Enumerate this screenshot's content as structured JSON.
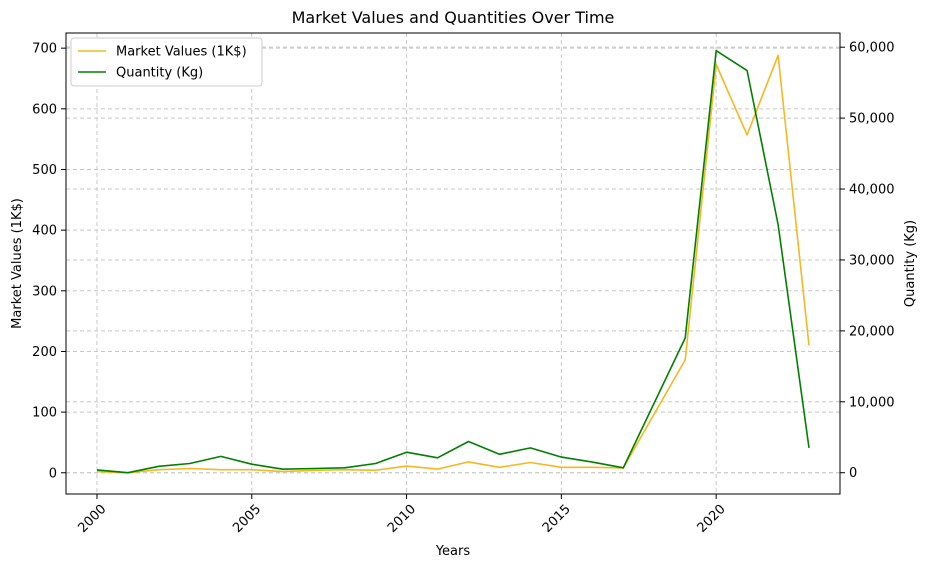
{
  "chart_data": {
    "type": "line",
    "title": "Market Values and Quantities Over Time",
    "xlabel": "Years",
    "ylabel_left": "Market Values (1K$)",
    "ylabel_right": "Quantity (Kg)",
    "xlim": [
      1999,
      2024
    ],
    "ylim_left": [
      -35,
      725
    ],
    "ylim_right": [
      -3000,
      62000
    ],
    "x_ticks": [
      2000,
      2005,
      2010,
      2015,
      2020
    ],
    "y_ticks_left": [
      0,
      100,
      200,
      300,
      400,
      500,
      600,
      700
    ],
    "y_ticks_right": [
      0,
      10000,
      20000,
      30000,
      40000,
      50000,
      60000
    ],
    "y_tick_labels_right": [
      "0",
      "10,000",
      "20,000",
      "30,000",
      "40,000",
      "50,000",
      "60,000"
    ],
    "grid": true,
    "legend_position": "top-left",
    "series": [
      {
        "name": "Market Values (1K$)",
        "axis": "left",
        "color": "#f5b820",
        "x": [
          2000,
          2001,
          2002,
          2003,
          2004,
          2005,
          2006,
          2007,
          2008,
          2009,
          2010,
          2011,
          2012,
          2013,
          2014,
          2015,
          2016,
          2017,
          2019,
          2020,
          2021,
          2022,
          2023
        ],
        "values": [
          2,
          0,
          5,
          7,
          5,
          5,
          2,
          4,
          5,
          4,
          11,
          6,
          18,
          9,
          17,
          9,
          9,
          8,
          186,
          673,
          557,
          688,
          210
        ]
      },
      {
        "name": "Quantity (Kg)",
        "axis": "right",
        "color": "#008000",
        "x": [
          2000,
          2001,
          2002,
          2003,
          2004,
          2005,
          2006,
          2007,
          2008,
          2009,
          2010,
          2011,
          2012,
          2013,
          2014,
          2015,
          2016,
          2017,
          2019,
          2020,
          2021,
          2022,
          2023
        ],
        "values": [
          400,
          0,
          900,
          1300,
          2300,
          1200,
          500,
          600,
          700,
          1300,
          2900,
          2100,
          4400,
          2600,
          3500,
          2200,
          1500,
          700,
          19000,
          59500,
          56700,
          35000,
          3500
        ]
      }
    ]
  }
}
